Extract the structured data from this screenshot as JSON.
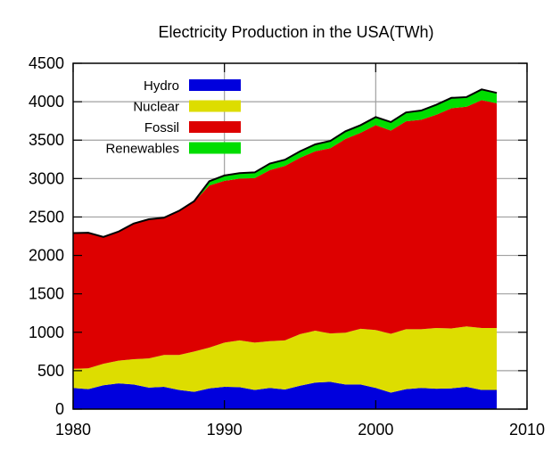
{
  "chart_data": {
    "type": "area",
    "stacked": true,
    "title": "Electricity Production in the USA(TWh)",
    "xlabel": "",
    "ylabel": "",
    "xlim": [
      1980,
      2010
    ],
    "ylim": [
      0,
      4500
    ],
    "xticks": [
      1980,
      1990,
      2000,
      2010
    ],
    "yticks": [
      0,
      500,
      1000,
      1500,
      2000,
      2500,
      3000,
      3500,
      4000,
      4500
    ],
    "xtick_labels": [
      "1980",
      "1990",
      "2000",
      "2010"
    ],
    "ytick_labels": [
      "0",
      "500",
      "1000",
      "1500",
      "2000",
      "2500",
      "3000",
      "3500",
      "4000",
      "4500"
    ],
    "grid": true,
    "legend_position": "top-left",
    "x": [
      1980,
      1981,
      1982,
      1983,
      1984,
      1985,
      1986,
      1987,
      1988,
      1989,
      1990,
      1991,
      1992,
      1993,
      1994,
      1995,
      1996,
      1997,
      1998,
      1999,
      2000,
      2001,
      2002,
      2003,
      2004,
      2005,
      2006,
      2007,
      2008
    ],
    "series": [
      {
        "name": "Hydro",
        "color": "#0000dd",
        "values": [
          275,
          260,
          310,
          335,
          320,
          280,
          290,
          250,
          225,
          270,
          290,
          285,
          250,
          275,
          255,
          305,
          345,
          355,
          320,
          320,
          275,
          215,
          260,
          275,
          265,
          270,
          290,
          250,
          250
        ]
      },
      {
        "name": "Nuclear",
        "color": "#dddd00",
        "values": [
          250,
          270,
          280,
          295,
          330,
          380,
          415,
          455,
          525,
          530,
          575,
          610,
          615,
          610,
          640,
          670,
          675,
          630,
          675,
          725,
          755,
          765,
          780,
          765,
          790,
          780,
          785,
          805,
          805
        ]
      },
      {
        "name": "Fossil",
        "color": "#dd0000",
        "values": [
          1760,
          1760,
          1645,
          1675,
          1760,
          1805,
          1780,
          1870,
          1950,
          2110,
          2105,
          2105,
          2140,
          2225,
          2270,
          2295,
          2335,
          2410,
          2520,
          2550,
          2665,
          2645,
          2705,
          2725,
          2775,
          2865,
          2860,
          2965,
          2925
        ]
      },
      {
        "name": "Renewables",
        "color": "#00dd00",
        "values": [
          5,
          5,
          5,
          5,
          5,
          5,
          5,
          5,
          5,
          55,
          70,
          70,
          75,
          85,
          80,
          85,
          90,
          95,
          100,
          100,
          105,
          110,
          115,
          120,
          130,
          135,
          125,
          140,
          135
        ]
      }
    ]
  }
}
